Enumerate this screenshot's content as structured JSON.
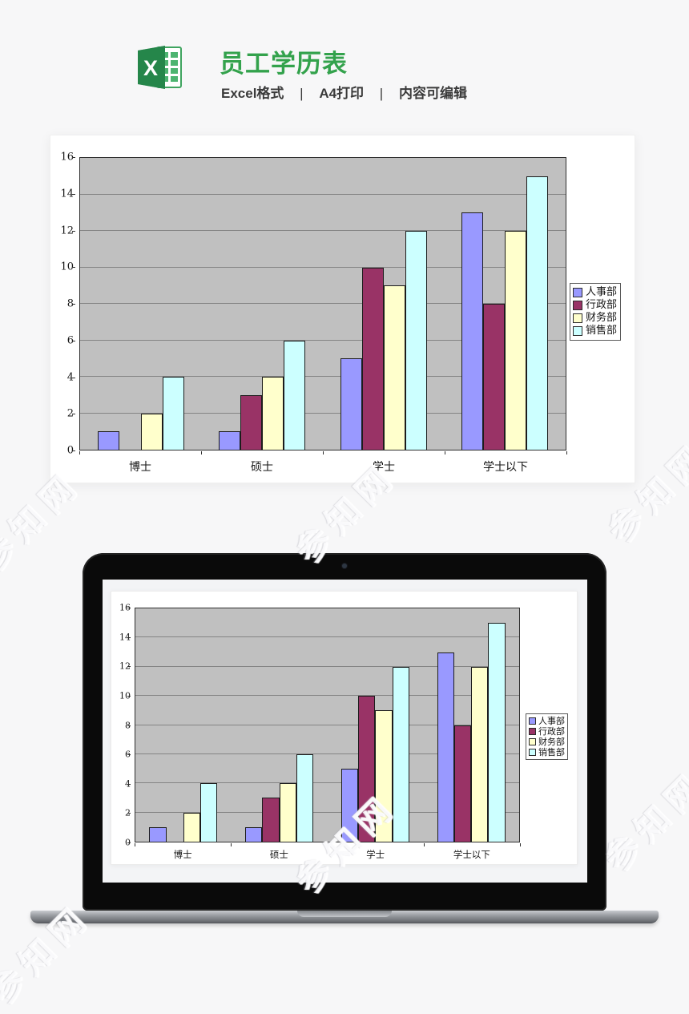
{
  "header": {
    "title": "员工学历表",
    "subtitle_parts": [
      "Excel格式",
      "A4打印",
      "内容可编辑"
    ],
    "separator": "|",
    "title_color": "#33a24c",
    "icon": "excel-logo"
  },
  "watermark": {
    "text": "参知网"
  },
  "chart_data": {
    "type": "bar",
    "title": "",
    "categories": [
      "博士",
      "硕士",
      "学士",
      "学士以下"
    ],
    "series": [
      {
        "name": "人事部",
        "color": "#9999FF",
        "values": [
          1,
          1,
          5,
          13
        ]
      },
      {
        "name": "行政部",
        "color": "#993366",
        "values": [
          0,
          3,
          10,
          8
        ]
      },
      {
        "name": "财务部",
        "color": "#FFFFCC",
        "values": [
          2,
          4,
          9,
          12
        ]
      },
      {
        "name": "销售部",
        "color": "#CCFFFF",
        "values": [
          4,
          6,
          12,
          15
        ]
      }
    ],
    "xlabel": "",
    "ylabel": "",
    "ylim": [
      0,
      16
    ],
    "yticks": [
      0,
      2,
      4,
      6,
      8,
      10,
      12,
      14,
      16
    ],
    "grid": true,
    "plot_bg": "#C0C0C0",
    "gridline_color": "#848484",
    "legend_position": "right"
  }
}
